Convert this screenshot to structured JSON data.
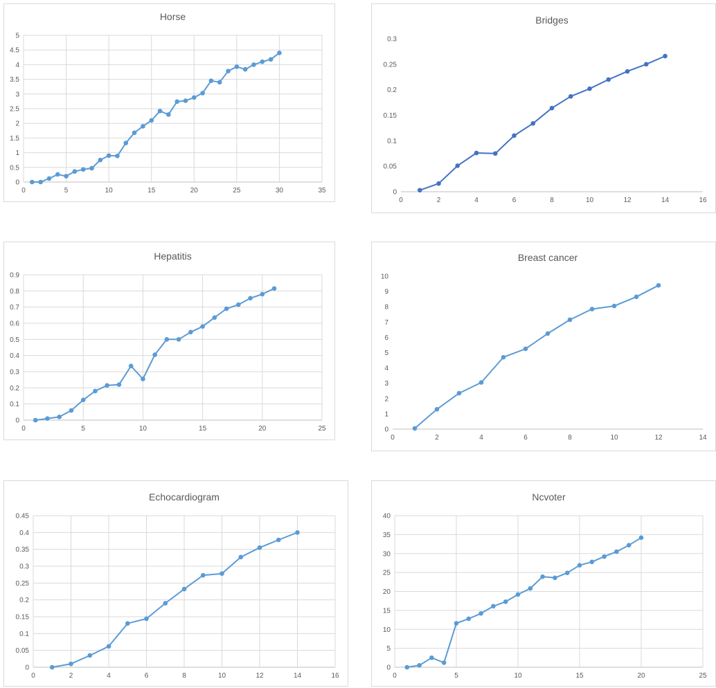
{
  "colors": {
    "primary": "#5b9bd5",
    "dark": "#4472c4"
  },
  "chart_data": [
    {
      "type": "line",
      "title": "Horse",
      "xlim": [
        0,
        35
      ],
      "xticks": [
        0,
        5,
        10,
        15,
        20,
        25,
        30,
        35
      ],
      "ylim": [
        0,
        5
      ],
      "yticks": [
        0,
        0.5,
        1,
        1.5,
        2,
        2.5,
        3,
        3.5,
        4,
        4.5,
        5
      ],
      "grid": true,
      "color": "#5b9bd5",
      "x": [
        1,
        2,
        3,
        4,
        5,
        6,
        7,
        8,
        9,
        10,
        11,
        12,
        13,
        14,
        15,
        16,
        17,
        18,
        19,
        20,
        21,
        22,
        23,
        24,
        25,
        26,
        27,
        28,
        29,
        30
      ],
      "y": [
        0.0,
        0.0,
        0.12,
        0.26,
        0.2,
        0.36,
        0.43,
        0.47,
        0.75,
        0.9,
        0.89,
        1.33,
        1.68,
        1.9,
        2.1,
        2.42,
        2.3,
        2.74,
        2.77,
        2.88,
        3.03,
        3.45,
        3.4,
        3.78,
        3.93,
        3.84,
        4.0,
        4.1,
        4.18,
        4.4
      ]
    },
    {
      "type": "line",
      "title": "Bridges",
      "xlim": [
        0,
        16
      ],
      "xticks": [
        0,
        2,
        4,
        6,
        8,
        10,
        12,
        14,
        16
      ],
      "ylim": [
        0,
        0.3
      ],
      "yticks": [
        0,
        0.05,
        0.1,
        0.15,
        0.2,
        0.25,
        0.3
      ],
      "grid": false,
      "color": "#4472c4",
      "x": [
        1,
        2,
        3,
        4,
        5,
        6,
        7,
        8,
        9,
        10,
        11,
        12,
        13,
        14
      ],
      "y": [
        0.003,
        0.016,
        0.051,
        0.076,
        0.075,
        0.11,
        0.134,
        0.164,
        0.187,
        0.202,
        0.22,
        0.236,
        0.25,
        0.266
      ]
    },
    {
      "type": "line",
      "title": "Hepatitis",
      "xlim": [
        0,
        25
      ],
      "xticks": [
        0,
        5,
        10,
        15,
        20,
        25
      ],
      "ylim": [
        0,
        0.9
      ],
      "yticks": [
        0,
        0.1,
        0.2,
        0.3,
        0.4,
        0.5,
        0.6,
        0.7,
        0.8,
        0.9
      ],
      "grid": true,
      "color": "#5b9bd5",
      "x": [
        1,
        2,
        3,
        4,
        5,
        6,
        7,
        8,
        9,
        10,
        11,
        12,
        13,
        14,
        15,
        16,
        17,
        18,
        19,
        20,
        21
      ],
      "y": [
        0.0,
        0.01,
        0.02,
        0.06,
        0.125,
        0.18,
        0.215,
        0.22,
        0.335,
        0.255,
        0.405,
        0.5,
        0.5,
        0.545,
        0.58,
        0.635,
        0.69,
        0.715,
        0.755,
        0.78,
        0.815
      ]
    },
    {
      "type": "line",
      "title": "Breast cancer",
      "xlim": [
        0,
        14
      ],
      "xticks": [
        0,
        2,
        4,
        6,
        8,
        10,
        12,
        14
      ],
      "ylim": [
        0,
        10
      ],
      "yticks": [
        0,
        1,
        2,
        3,
        4,
        5,
        6,
        7,
        8,
        9,
        10
      ],
      "grid": false,
      "color": "#5b9bd5",
      "x": [
        1,
        2,
        3,
        4,
        5,
        6,
        7,
        8,
        9,
        10,
        11,
        12
      ],
      "y": [
        0.05,
        1.3,
        2.35,
        3.05,
        4.7,
        5.25,
        6.25,
        7.15,
        7.85,
        8.05,
        8.65,
        9.4
      ]
    },
    {
      "type": "line",
      "title": "Echocardiogram",
      "xlim": [
        0,
        16
      ],
      "xticks": [
        0,
        2,
        4,
        6,
        8,
        10,
        12,
        14,
        16
      ],
      "ylim": [
        0,
        0.45
      ],
      "yticks": [
        0,
        0.05,
        0.1,
        0.15,
        0.2,
        0.25,
        0.3,
        0.35,
        0.4,
        0.45
      ],
      "grid": true,
      "color": "#5b9bd5",
      "x": [
        1,
        2,
        3,
        4,
        5,
        6,
        7,
        8,
        9,
        10,
        11,
        12,
        13,
        14
      ],
      "y": [
        0.0,
        0.01,
        0.035,
        0.062,
        0.13,
        0.144,
        0.19,
        0.232,
        0.273,
        0.278,
        0.327,
        0.355,
        0.378,
        0.4
      ]
    },
    {
      "type": "line",
      "title": "Ncvoter",
      "xlim": [
        0,
        25
      ],
      "xticks": [
        0,
        5,
        10,
        15,
        20,
        25
      ],
      "ylim": [
        0,
        40
      ],
      "yticks": [
        0,
        5,
        10,
        15,
        20,
        25,
        30,
        35,
        40
      ],
      "grid": true,
      "color": "#5b9bd5",
      "x": [
        1,
        2,
        3,
        4,
        5,
        6,
        7,
        8,
        9,
        10,
        11,
        12,
        13,
        14,
        15,
        16,
        17,
        18,
        19,
        20
      ],
      "y": [
        0.0,
        0.5,
        2.5,
        1.2,
        11.6,
        12.8,
        14.2,
        16.1,
        17.3,
        19.2,
        20.8,
        23.9,
        23.6,
        24.9,
        26.9,
        27.8,
        29.2,
        30.5,
        32.2,
        34.2
      ]
    }
  ]
}
